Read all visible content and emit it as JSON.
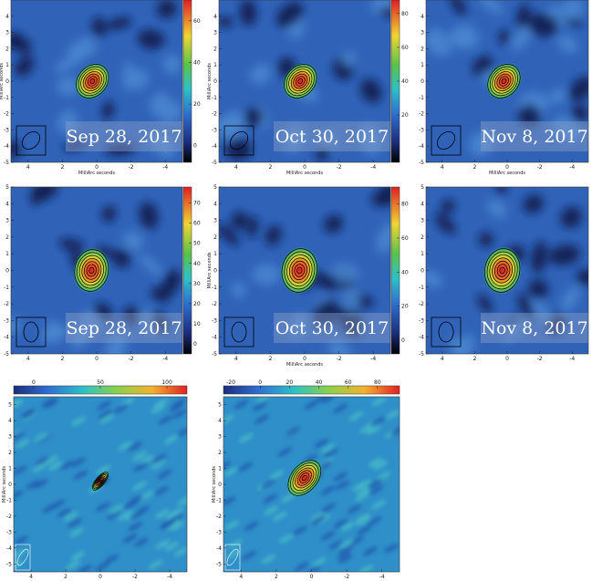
{
  "panels": [
    {
      "date": "Sep 28, 2017",
      "xlabel": "MilliArc seconds",
      "ylabel": "MilliArc seconds",
      "xlim": [
        5,
        -5
      ],
      "ylim": [
        -5,
        5
      ],
      "xticks": [
        4,
        2,
        0,
        -2,
        -4
      ],
      "yticks": [
        4,
        3,
        2,
        1,
        0,
        -1,
        -2,
        -3,
        -4,
        -5
      ],
      "cbar_lim": [
        -8,
        70
      ],
      "cbar_ticks": [
        0,
        20,
        40,
        60
      ]
    },
    {
      "date": "Oct 30, 2017",
      "xlabel": "MilliArc seconds",
      "ylabel": "MilliArc seconds",
      "xlim": [
        5,
        -5
      ],
      "ylim": [
        -5,
        5
      ],
      "xticks": [
        4,
        2,
        0,
        -2,
        -4
      ],
      "yticks": [
        4,
        3,
        2,
        1,
        0,
        -1,
        -2,
        -3,
        -4,
        -5
      ],
      "cbar_lim": [
        -8,
        88
      ],
      "cbar_ticks": [
        20,
        40,
        60,
        80
      ]
    },
    {
      "date": "Nov 8, 2017",
      "xlabel": "MilliArc seconds",
      "xlim": [
        5,
        -5
      ],
      "ylim": [
        -5,
        5
      ],
      "xticks": [
        4,
        2,
        0,
        -2,
        -4
      ],
      "yticks": [
        4,
        3,
        2,
        1,
        0,
        -1,
        -2,
        -3,
        -4,
        -5
      ]
    },
    {
      "date": "Sep 28, 2017",
      "xlim": [
        5,
        -5
      ],
      "ylim": [
        -5,
        5
      ],
      "xticks": [
        4,
        2,
        0,
        -2,
        -4
      ],
      "yticks": [
        5,
        4,
        3,
        2,
        1,
        0,
        -1,
        -2,
        -3,
        -4,
        -5
      ],
      "cbar_lim": [
        -5,
        78
      ],
      "cbar_ticks": [
        0,
        10,
        20,
        30,
        40,
        50,
        60,
        70
      ]
    },
    {
      "date": "Oct 30, 2017",
      "xlabel": "MilliArc seconds",
      "ylabel": "MilliArc seconds",
      "xlim": [
        5,
        -5
      ],
      "ylim": [
        -5,
        5
      ],
      "xticks": [
        4,
        2,
        0,
        -2,
        -4
      ],
      "yticks": [
        5,
        4,
        3,
        2,
        1,
        0,
        -1,
        -2,
        -3,
        -4,
        -5
      ],
      "cbar_lim": [
        -8,
        90
      ],
      "cbar_ticks": [
        0,
        20,
        40,
        60,
        80
      ]
    },
    {
      "date": "Nov 8, 2017",
      "xlim": [
        5,
        -5
      ],
      "ylim": [
        -5,
        5
      ],
      "xticks": [
        4,
        2,
        0,
        -2,
        -4
      ],
      "yticks": [
        5,
        4,
        3,
        2,
        1,
        0,
        -1,
        -2,
        -3,
        -4,
        -5
      ]
    },
    {
      "ylabel": "MilliArc seconds",
      "xlim": [
        5,
        -5
      ],
      "ylim": [
        -5.5,
        5.5
      ],
      "xticks": [
        4,
        2,
        0,
        -2,
        -4
      ],
      "yticks": [
        5,
        4,
        3,
        2,
        1,
        0,
        -1,
        -2,
        -3,
        -4,
        -5
      ],
      "cbar_lim": [
        -15,
        115
      ],
      "cbar_ticks": [
        0,
        50,
        100
      ]
    },
    {
      "ylabel": "MilliArc seconds",
      "xlim": [
        5,
        -5
      ],
      "ylim": [
        -5.5,
        5.5
      ],
      "xticks": [
        4,
        2,
        0,
        -2,
        -4
      ],
      "yticks": [
        5,
        4,
        3,
        2,
        1,
        0,
        -1,
        -2,
        -3,
        -4,
        -5
      ],
      "cbar_lim": [
        -25,
        95
      ],
      "cbar_ticks": [
        -20,
        0,
        20,
        40,
        60,
        80
      ]
    }
  ]
}
